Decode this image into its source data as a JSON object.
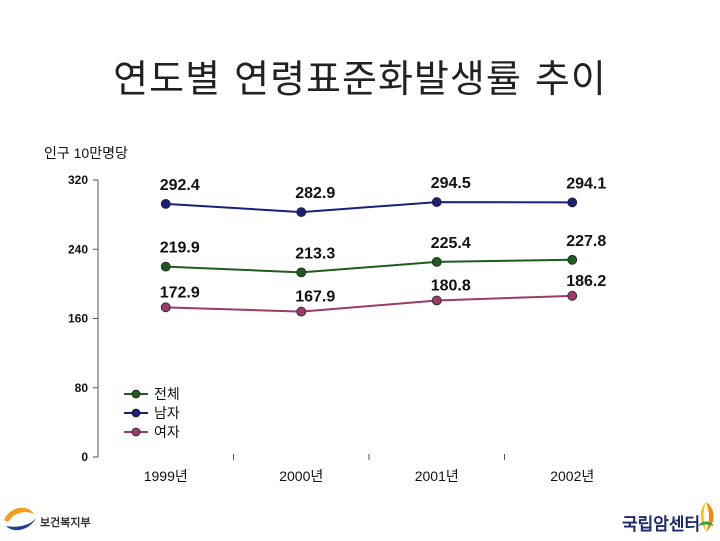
{
  "page": {
    "title": "연도별 연령표준화발생률 추이",
    "unit_label": "인구 10만명당"
  },
  "chart_data": {
    "type": "line",
    "title": "연도별 연령표준화발생률 추이",
    "xlabel": "",
    "ylabel": "",
    "categories": [
      "1999년",
      "2000년",
      "2001년",
      "2002년"
    ],
    "ylim": [
      0,
      320
    ],
    "yticks": [
      0,
      80,
      160,
      240,
      320
    ],
    "grid": false,
    "legend_placement": "lower-left",
    "series": [
      {
        "name": "전체",
        "color": "#1f5a1f",
        "values": [
          219.9,
          213.3,
          225.4,
          227.8
        ]
      },
      {
        "name": "남자",
        "color": "#1a1f7a",
        "values": [
          292.4,
          282.9,
          294.5,
          294.1
        ]
      },
      {
        "name": "여자",
        "color": "#9b3a6b",
        "values": [
          172.9,
          167.9,
          180.8,
          186.2
        ]
      }
    ]
  },
  "footer": {
    "left_logo_text": "보건복지부",
    "right_logo_text": "국립암센터",
    "colors": {
      "ministry_blue": "#1b3f8f",
      "ministry_orange": "#f0a020",
      "center_navy": "#1c2a6b",
      "center_orange": "#f08a10",
      "center_yellow": "#f6c800",
      "center_green": "#3a9a3a"
    }
  }
}
